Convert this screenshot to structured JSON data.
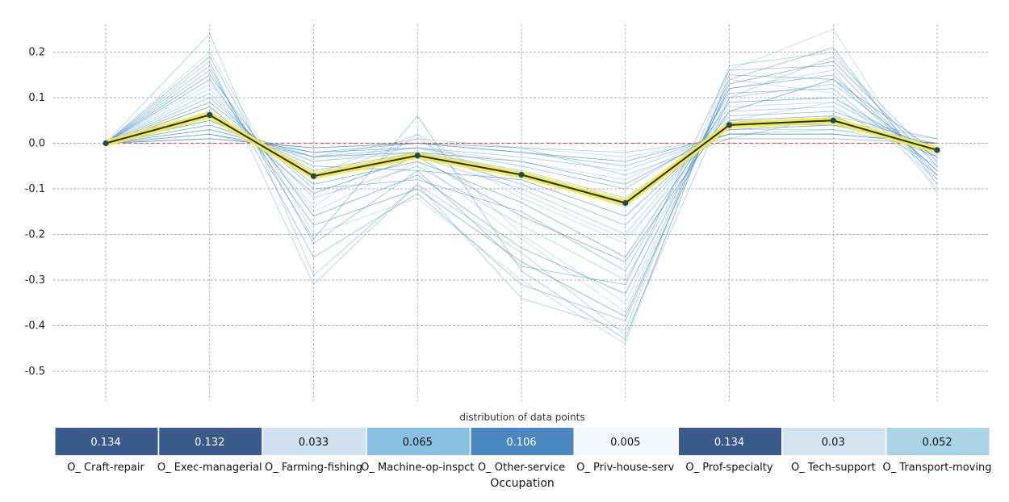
{
  "chart_data": {
    "type": "line",
    "xlabel": "Occupation",
    "distribution_title": "distribution of data points",
    "categories": [
      "O_ Craft-repair",
      "O_ Exec-managerial",
      "O_ Farming-fishing",
      "O_ Machine-op-inspct",
      "O_ Other-service",
      "O_ Priv-house-serv",
      "O_ Prof-specialty",
      "O_ Tech-support",
      "O_ Transport-moving"
    ],
    "yticks": [
      0.2,
      0.1,
      0.0,
      -0.1,
      -0.2,
      -0.3,
      -0.4,
      -0.5
    ],
    "ylim": [
      -0.55,
      0.27
    ],
    "grid": true,
    "average_line": {
      "values": [
        0.0,
        0.062,
        -0.072,
        -0.027,
        -0.069,
        -0.131,
        0.04,
        0.05,
        -0.015
      ]
    },
    "reference_line": {
      "value": 0.0,
      "color": "#d9534f"
    },
    "background_lines": [
      [
        0,
        0.2,
        -0.2,
        -0.12,
        -0.3,
        -0.44,
        0.16,
        0.25,
        -0.11
      ],
      [
        0,
        0.18,
        -0.31,
        -0.09,
        -0.34,
        -0.41,
        0.17,
        0.2,
        -0.08
      ],
      [
        0,
        0.16,
        -0.21,
        0.06,
        -0.28,
        -0.43,
        0.15,
        0.14,
        -0.06
      ],
      [
        0,
        0.14,
        -0.18,
        -0.1,
        -0.26,
        -0.38,
        0.13,
        0.18,
        -0.05
      ],
      [
        0,
        0.12,
        -0.14,
        0.02,
        -0.2,
        -0.35,
        0.12,
        0.16,
        -0.1
      ],
      [
        0,
        0.11,
        -0.12,
        -0.05,
        -0.18,
        -0.3,
        0.1,
        0.13,
        -0.04
      ],
      [
        0,
        0.1,
        -0.1,
        -0.08,
        -0.15,
        -0.28,
        0.11,
        0.12,
        -0.07
      ],
      [
        0,
        0.09,
        -0.09,
        -0.04,
        -0.13,
        -0.25,
        0.09,
        0.1,
        -0.03
      ],
      [
        0,
        0.08,
        -0.08,
        0.01,
        -0.12,
        -0.22,
        0.08,
        0.09,
        -0.02
      ],
      [
        0,
        0.07,
        -0.07,
        -0.03,
        -0.1,
        -0.2,
        0.07,
        0.08,
        -0.05
      ],
      [
        0,
        0.06,
        -0.06,
        -0.02,
        -0.09,
        -0.18,
        0.06,
        0.07,
        -0.01
      ],
      [
        0,
        0.05,
        -0.05,
        -0.06,
        -0.08,
        -0.16,
        0.05,
        0.06,
        -0.03
      ],
      [
        0,
        0.05,
        -0.04,
        -0.01,
        -0.07,
        -0.14,
        0.05,
        0.05,
        0.01
      ],
      [
        0,
        0.04,
        -0.04,
        -0.02,
        -0.06,
        -0.12,
        0.04,
        0.05,
        -0.02
      ],
      [
        0,
        0.04,
        -0.03,
        -0.01,
        -0.05,
        -0.1,
        0.04,
        0.04,
        0.0
      ],
      [
        0,
        0.03,
        -0.03,
        -0.02,
        -0.04,
        -0.09,
        0.03,
        0.04,
        -0.01
      ],
      [
        0,
        0.03,
        -0.02,
        -0.01,
        -0.04,
        -0.08,
        0.03,
        0.03,
        0.01
      ],
      [
        0,
        0.02,
        -0.02,
        -0.01,
        -0.03,
        -0.06,
        0.02,
        0.03,
        -0.01
      ],
      [
        0,
        0.02,
        -0.02,
        0.0,
        -0.02,
        -0.05,
        0.02,
        0.02,
        0.0
      ],
      [
        0,
        0.01,
        -0.01,
        0.0,
        -0.02,
        -0.04,
        0.02,
        0.02,
        0.0
      ],
      [
        0,
        0.01,
        -0.01,
        0.0,
        -0.01,
        -0.03,
        0.01,
        0.01,
        0.0
      ],
      [
        0,
        0.01,
        -0.01,
        0.0,
        -0.01,
        -0.02,
        0.01,
        0.01,
        0.0
      ],
      [
        0,
        0.17,
        -0.25,
        -0.11,
        -0.31,
        -0.39,
        0.14,
        0.21,
        -0.09
      ],
      [
        0,
        0.15,
        -0.16,
        -0.07,
        -0.23,
        -0.33,
        0.12,
        0.15,
        -0.06
      ],
      [
        0,
        0.13,
        -0.15,
        -0.04,
        -0.21,
        -0.37,
        0.14,
        0.11,
        -0.08
      ],
      [
        0,
        0.24,
        -0.29,
        -0.09,
        -0.24,
        -0.42,
        0.1,
        0.19,
        -0.04
      ],
      [
        0,
        0.19,
        -0.22,
        -0.06,
        -0.27,
        -0.31,
        0.16,
        0.17,
        -0.07
      ],
      [
        0,
        0.08,
        -0.11,
        -0.03,
        -0.16,
        -0.26,
        0.07,
        0.14,
        -0.02
      ],
      [
        0,
        0.06,
        -0.07,
        0.02,
        -0.11,
        -0.21,
        0.05,
        0.09,
        -0.03
      ],
      [
        0,
        0.02,
        -0.03,
        0.01,
        -0.01,
        -0.07,
        0.01,
        0.06,
        0.01
      ]
    ],
    "distribution": [
      {
        "label": "0.134",
        "value": 0.134,
        "color": "#3a5a8c",
        "text_color": "#ffffff"
      },
      {
        "label": "0.132",
        "value": 0.132,
        "color": "#3a5a8c",
        "text_color": "#ffffff"
      },
      {
        "label": "0.033",
        "value": 0.033,
        "color": "#cfe0f0",
        "text_color": "#111111"
      },
      {
        "label": "0.065",
        "value": 0.065,
        "color": "#89bfe0",
        "text_color": "#111111"
      },
      {
        "label": "0.106",
        "value": 0.106,
        "color": "#4a86c2",
        "text_color": "#ffffff"
      },
      {
        "label": "0.005",
        "value": 0.005,
        "color": "#f2f7fc",
        "text_color": "#111111"
      },
      {
        "label": "0.134",
        "value": 0.134,
        "color": "#3a5a8c",
        "text_color": "#ffffff"
      },
      {
        "label": "0.03",
        "value": 0.03,
        "color": "#d3e3f2",
        "text_color": "#111111"
      },
      {
        "label": "0.052",
        "value": 0.052,
        "color": "#a8d4e6",
        "text_color": "#111111"
      }
    ],
    "colors": {
      "background_line": "#4a90c8",
      "average_fill": "#f5e84a",
      "average_core": "#1c3146",
      "marker": "#1d4a5a",
      "grid": "#999999"
    }
  }
}
